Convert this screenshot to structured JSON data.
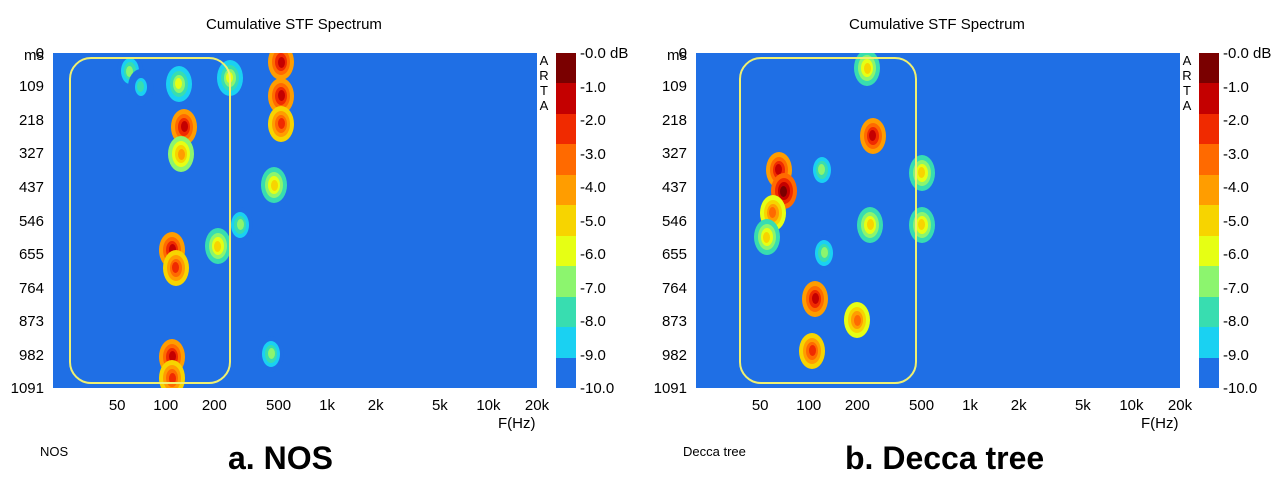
{
  "chart_data": [
    {
      "type": "heatmap",
      "title": "Cumulative STF Spectrum",
      "xlabel": "F(Hz)",
      "ylabel": "ms",
      "x_ticks": [
        "50",
        "100",
        "200",
        "500",
        "1k",
        "2k",
        "5k",
        "10k",
        "20k"
      ],
      "y_ticks": [
        "0",
        "109",
        "218",
        "327",
        "437",
        "546",
        "655",
        "764",
        "873",
        "982",
        "1091"
      ],
      "colorbar_ticks": [
        "-0.0 dB",
        "-1.0",
        "-2.0",
        "-3.0",
        "-4.0",
        "-5.0",
        "-6.0",
        "-7.0",
        "-8.0",
        "-9.0",
        "-10.0"
      ],
      "side_label": [
        "A",
        "R",
        "T",
        "A"
      ],
      "source_label": "NOS",
      "caption": "a. NOS",
      "highlight_range": {
        "f_low_hz": 25,
        "f_high_hz": 240,
        "t_low_ms": 0,
        "t_high_ms": 1091
      },
      "hotspots": [
        {
          "f": 60,
          "t": 60,
          "level": -7
        },
        {
          "f": 70,
          "t": 110,
          "level": -8
        },
        {
          "f": 120,
          "t": 100,
          "level": -6
        },
        {
          "f": 130,
          "t": 240,
          "level": -1
        },
        {
          "f": 125,
          "t": 330,
          "level": -4
        },
        {
          "f": 110,
          "t": 640,
          "level": -1
        },
        {
          "f": 115,
          "t": 700,
          "level": -2
        },
        {
          "f": 110,
          "t": 990,
          "level": -1
        },
        {
          "f": 110,
          "t": 1060,
          "level": -2
        },
        {
          "f": 210,
          "t": 630,
          "level": -5
        },
        {
          "f": 250,
          "t": 80,
          "level": -6
        },
        {
          "f": 520,
          "t": 30,
          "level": -1
        },
        {
          "f": 520,
          "t": 140,
          "level": -1
        },
        {
          "f": 520,
          "t": 230,
          "level": -2
        },
        {
          "f": 470,
          "t": 430,
          "level": -5
        },
        {
          "f": 290,
          "t": 560,
          "level": -7
        },
        {
          "f": 450,
          "t": 980,
          "level": -7
        }
      ]
    },
    {
      "type": "heatmap",
      "title": "Cumulative STF Spectrum",
      "xlabel": "F(Hz)",
      "ylabel": "ms",
      "x_ticks": [
        "50",
        "100",
        "200",
        "500",
        "1k",
        "2k",
        "5k",
        "10k",
        "20k"
      ],
      "y_ticks": [
        "0",
        "109",
        "218",
        "327",
        "437",
        "546",
        "655",
        "764",
        "873",
        "982",
        "1091"
      ],
      "colorbar_ticks": [
        "-0.0 dB",
        "-1.0",
        "-2.0",
        "-3.0",
        "-4.0",
        "-5.0",
        "-6.0",
        "-7.0",
        "-8.0",
        "-9.0",
        "-10.0"
      ],
      "side_label": [
        "A",
        "R",
        "T",
        "A"
      ],
      "source_label": "Decca tree",
      "caption": "b. Decca tree",
      "highlight_range": {
        "f_low_hz": 37,
        "f_high_hz": 440,
        "t_low_ms": 0,
        "t_high_ms": 1091
      },
      "hotspots": [
        {
          "f": 65,
          "t": 380,
          "level": -1
        },
        {
          "f": 70,
          "t": 450,
          "level": 0
        },
        {
          "f": 60,
          "t": 520,
          "level": -3
        },
        {
          "f": 55,
          "t": 600,
          "level": -5
        },
        {
          "f": 120,
          "t": 380,
          "level": -7
        },
        {
          "f": 125,
          "t": 650,
          "level": -7
        },
        {
          "f": 110,
          "t": 800,
          "level": -1
        },
        {
          "f": 105,
          "t": 970,
          "level": -2
        },
        {
          "f": 230,
          "t": 50,
          "level": -5
        },
        {
          "f": 250,
          "t": 270,
          "level": -1
        },
        {
          "f": 240,
          "t": 560,
          "level": -5
        },
        {
          "f": 200,
          "t": 870,
          "level": -3
        },
        {
          "f": 500,
          "t": 390,
          "level": -5
        },
        {
          "f": 500,
          "t": 560,
          "level": -5
        }
      ]
    }
  ]
}
